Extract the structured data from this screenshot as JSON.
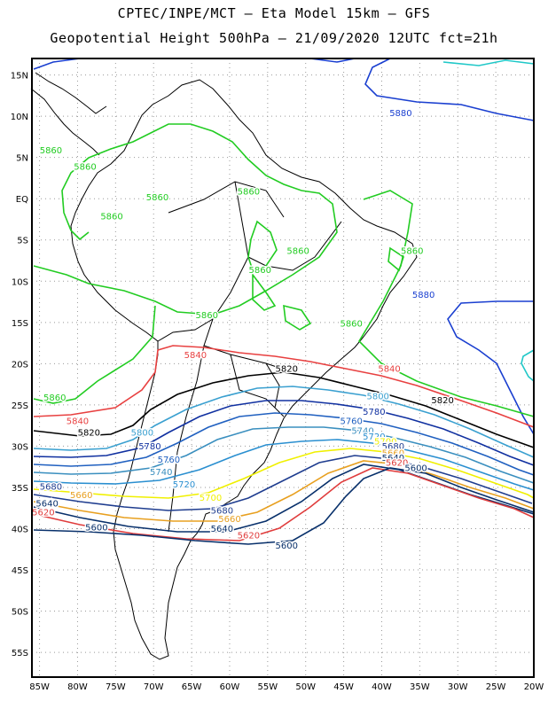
{
  "header": {
    "title_line1": "CPTEC/INPE/MCT –  Eta Model 15km – GFS",
    "title_line2": "Geopotential Height 500hPa – 21/09/2020 12UTC fct=21h"
  },
  "axes": {
    "lat_labels": [
      "15N",
      "10N",
      "5N",
      "EQ",
      "5S",
      "10S",
      "15S",
      "20S",
      "25S",
      "30S",
      "35S",
      "40S",
      "45S",
      "50S",
      "55S"
    ],
    "lat_values": [
      15,
      10,
      5,
      0,
      -5,
      -10,
      -15,
      -20,
      -25,
      -30,
      -35,
      -40,
      -45,
      -50,
      -55
    ],
    "lon_labels": [
      "85W",
      "80W",
      "75W",
      "70W",
      "65W",
      "60W",
      "55W",
      "50W",
      "45W",
      "40W",
      "35W",
      "30W",
      "25W",
      "20W"
    ],
    "lon_values": [
      -85,
      -80,
      -75,
      -70,
      -65,
      -60,
      -55,
      -50,
      -45,
      -40,
      -35,
      -30,
      -25,
      -20
    ],
    "lon_range": [
      -86,
      -20
    ],
    "lat_range": [
      -58,
      17
    ],
    "grid": "dotted"
  },
  "contour_colors": {
    "5600": "#08306b",
    "5620": "#e03c3c",
    "5640": "#08306b",
    "5660": "#e8a020",
    "5680": "#1f3d8f",
    "5700": "#f0f000",
    "5720": "#2a8fd0",
    "5740": "#3a8fbf",
    "5760": "#2060c0",
    "5780": "#1030a0",
    "5800": "#3aa0d0",
    "5820": "#000000",
    "5840": "#e84040",
    "5860": "#22cc22",
    "5880": "#1a3fd0",
    "5900": "#20c8c8"
  },
  "contour_labels": [
    {
      "text": "5880",
      "lon": -37.5,
      "lat": 10
    },
    {
      "text": "5880",
      "lon": -34.5,
      "lat": -12
    },
    {
      "text": "5860",
      "lon": -83.5,
      "lat": 5.5
    },
    {
      "text": "5860",
      "lon": -79,
      "lat": 3.5
    },
    {
      "text": "5860",
      "lon": -69.5,
      "lat": -0.2
    },
    {
      "text": "5860",
      "lon": -57.5,
      "lat": 0.5
    },
    {
      "text": "5860",
      "lon": -75.5,
      "lat": -2.5
    },
    {
      "text": "5860",
      "lon": -51,
      "lat": -6.7
    },
    {
      "text": "5860",
      "lon": -56,
      "lat": -9
    },
    {
      "text": "5860",
      "lon": -36,
      "lat": -6.7
    },
    {
      "text": "5860",
      "lon": -63,
      "lat": -14.5
    },
    {
      "text": "5860",
      "lon": -44,
      "lat": -15.5
    },
    {
      "text": "5860",
      "lon": -83,
      "lat": -24.5
    },
    {
      "text": "5840",
      "lon": -64.5,
      "lat": -19.3
    },
    {
      "text": "5840",
      "lon": -39,
      "lat": -21
    },
    {
      "text": "5840",
      "lon": -80,
      "lat": -27.3
    },
    {
      "text": "5820",
      "lon": -52.5,
      "lat": -21
    },
    {
      "text": "5820",
      "lon": -32,
      "lat": -24.8
    },
    {
      "text": "5820",
      "lon": -78.5,
      "lat": -28.7
    },
    {
      "text": "5800",
      "lon": -71.5,
      "lat": -28.7
    },
    {
      "text": "5800",
      "lon": -40.5,
      "lat": -24.3
    },
    {
      "text": "5780",
      "lon": -41,
      "lat": -26.2
    },
    {
      "text": "5780",
      "lon": -70.5,
      "lat": -30.4
    },
    {
      "text": "5760",
      "lon": -44,
      "lat": -27.3
    },
    {
      "text": "5760",
      "lon": -68,
      "lat": -32
    },
    {
      "text": "5740",
      "lon": -42.5,
      "lat": -28.5
    },
    {
      "text": "5740",
      "lon": -69,
      "lat": -33.5
    },
    {
      "text": "5720",
      "lon": -41,
      "lat": -29.2
    },
    {
      "text": "5720",
      "lon": -66,
      "lat": -35
    },
    {
      "text": "5700",
      "lon": -39.5,
      "lat": -29.8
    },
    {
      "text": "5700",
      "lon": -62.5,
      "lat": -36.6
    },
    {
      "text": "5680",
      "lon": -38.5,
      "lat": -30.4
    },
    {
      "text": "5680",
      "lon": -83.5,
      "lat": -35.3
    },
    {
      "text": "5680",
      "lon": -61,
      "lat": -38.2
    },
    {
      "text": "5660",
      "lon": -38.5,
      "lat": -31.2
    },
    {
      "text": "5660",
      "lon": -79.5,
      "lat": -36.3
    },
    {
      "text": "5660",
      "lon": -60,
      "lat": -39.2
    },
    {
      "text": "5640",
      "lon": -38.5,
      "lat": -31.8
    },
    {
      "text": "5640",
      "lon": -84,
      "lat": -37.3
    },
    {
      "text": "5640",
      "lon": -61,
      "lat": -40.4
    },
    {
      "text": "5620",
      "lon": -38,
      "lat": -32.4
    },
    {
      "text": "5620",
      "lon": -84.5,
      "lat": -38.4
    },
    {
      "text": "5620",
      "lon": -57.5,
      "lat": -41.2
    },
    {
      "text": "5600",
      "lon": -35.5,
      "lat": -33
    },
    {
      "text": "5600",
      "lon": -77.5,
      "lat": -40.2
    },
    {
      "text": "5600",
      "lon": -52.5,
      "lat": -42.4
    }
  ]
}
